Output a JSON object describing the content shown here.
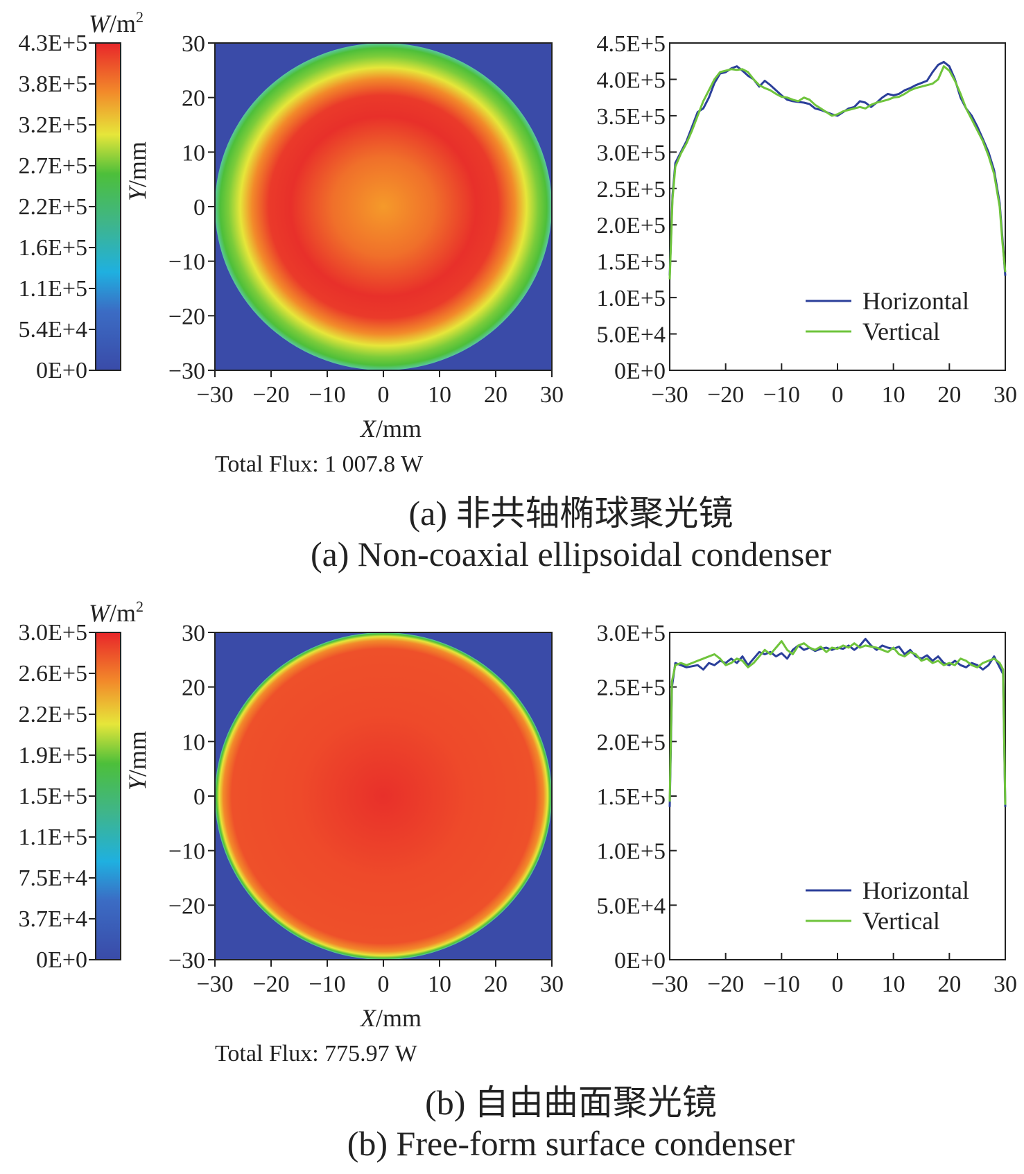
{
  "figure": {
    "panels": [
      {
        "id": "a",
        "colorbar": {
          "unit_var": "W",
          "unit_rest": "/m",
          "unit_sup": "2",
          "labels": [
            "4.3E+5",
            "3.8E+5",
            "3.2E+5",
            "2.7E+5",
            "2.2E+5",
            "1.6E+5",
            "1.1E+5",
            "5.4E+4",
            "0E+0"
          ]
        },
        "map": {
          "y_var": "Y",
          "y_unit": "/mm",
          "x_var": "X",
          "x_unit": "/mm",
          "ticks": [
            "30",
            "20",
            "10",
            "0",
            "−10",
            "−20",
            "−30"
          ],
          "xticks": [
            "−30",
            "−20",
            "−10",
            "0",
            "10",
            "20",
            "30"
          ],
          "total_flux": "Total Flux: 1 007.8 W"
        },
        "caption_cn": "(a) 非共轴椭球聚光镜",
        "caption_en": "(a) Non-coaxial ellipsoidal condenser"
      },
      {
        "id": "b",
        "colorbar": {
          "unit_var": "W",
          "unit_rest": "/m",
          "unit_sup": "2",
          "labels": [
            "3.0E+5",
            "2.6E+5",
            "2.2E+5",
            "1.9E+5",
            "1.5E+5",
            "1.1E+5",
            "7.5E+4",
            "3.7E+4",
            "0E+0"
          ]
        },
        "map": {
          "y_var": "Y",
          "y_unit": "/mm",
          "x_var": "X",
          "x_unit": "/mm",
          "ticks": [
            "30",
            "20",
            "10",
            "0",
            "−10",
            "−20",
            "−30"
          ],
          "xticks": [
            "−30",
            "−20",
            "−10",
            "0",
            "10",
            "20",
            "30"
          ],
          "total_flux": "Total Flux: 775.97 W"
        },
        "caption_cn": "(b) 自由曲面聚光镜",
        "caption_en": "(b) Free-form surface condenser"
      }
    ]
  },
  "chart_data": [
    {
      "type": "heatmap",
      "panel": "a",
      "xlim": [
        -30,
        30
      ],
      "ylim": [
        -30,
        30
      ],
      "zlim": [
        0,
        430000
      ],
      "colormap": [
        "#3a4ba8",
        "#1fb0e0",
        "#4dbf3a",
        "#e6e63a",
        "#f28a2a",
        "#e8262a"
      ],
      "disk_radius": 30,
      "radial_profile": [
        [
          0,
          0.8
        ],
        [
          10,
          0.85
        ],
        [
          15,
          0.93
        ],
        [
          19,
          0.97
        ],
        [
          23,
          0.85
        ],
        [
          26,
          0.68
        ],
        [
          28.5,
          0.52
        ],
        [
          30,
          0.3
        ]
      ],
      "total_flux": "Total Flux: 1 007.8 W"
    },
    {
      "type": "line",
      "panel": "a",
      "xlim": [
        -30,
        30
      ],
      "ylim": [
        0,
        450000
      ],
      "xticks": [
        "−30",
        "−20",
        "−10",
        "0",
        "10",
        "20",
        "30"
      ],
      "yticks": [
        "4.5E+5",
        "4.0E+5",
        "3.5E+5",
        "3.0E+5",
        "2.5E+5",
        "2.0E+5",
        "1.5E+5",
        "1.0E+5",
        "5.0E+4",
        "0E+0"
      ],
      "legend_position": "bottom-right",
      "series": [
        {
          "name": "Horizontal",
          "color": "#2b3f9a",
          "x": [
            -30,
            -29.5,
            -29,
            -28,
            -27,
            -26,
            -25,
            -24,
            -23,
            -22,
            -21,
            -20,
            -19,
            -18,
            -17,
            -16,
            -15,
            -14,
            -13,
            -12,
            -11,
            -10,
            -9,
            -8,
            -7,
            -6,
            -5,
            -4,
            -3,
            -2,
            -1,
            0,
            1,
            2,
            3,
            4,
            5,
            6,
            7,
            8,
            9,
            10,
            11,
            12,
            13,
            14,
            15,
            16,
            17,
            18,
            19,
            20,
            21,
            22,
            23,
            24,
            25,
            26,
            27,
            28,
            29,
            29.5,
            30
          ],
          "y": [
            130000,
            240000,
            285000,
            300000,
            315000,
            335000,
            355000,
            360000,
            375000,
            395000,
            408000,
            410000,
            415000,
            418000,
            412000,
            405000,
            400000,
            390000,
            398000,
            392000,
            385000,
            378000,
            372000,
            370000,
            369000,
            368000,
            366000,
            360000,
            358000,
            355000,
            352000,
            350000,
            355000,
            360000,
            362000,
            370000,
            368000,
            362000,
            368000,
            375000,
            380000,
            378000,
            380000,
            385000,
            388000,
            392000,
            395000,
            398000,
            410000,
            420000,
            424000,
            418000,
            400000,
            375000,
            360000,
            350000,
            335000,
            318000,
            300000,
            275000,
            230000,
            180000,
            130000
          ]
        },
        {
          "name": "Vertical",
          "color": "#6fc43c",
          "x": [
            -30,
            -29.5,
            -29,
            -28,
            -27,
            -26,
            -25,
            -24,
            -23,
            -22,
            -21,
            -20,
            -19,
            -18,
            -17,
            -16,
            -15,
            -14,
            -13,
            -12,
            -11,
            -10,
            -9,
            -8,
            -7,
            -6,
            -5,
            -4,
            -3,
            -2,
            -1,
            0,
            1,
            2,
            3,
            4,
            5,
            6,
            7,
            8,
            9,
            10,
            11,
            12,
            13,
            14,
            15,
            16,
            17,
            18,
            19,
            20,
            21,
            22,
            23,
            24,
            25,
            26,
            27,
            28,
            29,
            29.5,
            30
          ],
          "y": [
            125000,
            235000,
            280000,
            298000,
            312000,
            330000,
            350000,
            370000,
            385000,
            400000,
            410000,
            412000,
            414000,
            413000,
            414000,
            410000,
            400000,
            392000,
            388000,
            385000,
            380000,
            376000,
            375000,
            372000,
            370000,
            375000,
            372000,
            365000,
            360000,
            355000,
            350000,
            352000,
            356000,
            358000,
            360000,
            362000,
            360000,
            365000,
            368000,
            370000,
            372000,
            375000,
            376000,
            380000,
            385000,
            388000,
            390000,
            392000,
            394000,
            400000,
            418000,
            412000,
            398000,
            380000,
            360000,
            345000,
            330000,
            315000,
            295000,
            270000,
            225000,
            175000,
            135000
          ]
        }
      ]
    },
    {
      "type": "heatmap",
      "panel": "b",
      "xlim": [
        -30,
        30
      ],
      "ylim": [
        -30,
        30
      ],
      "zlim": [
        0,
        300000
      ],
      "colormap": [
        "#3a4ba8",
        "#1fb0e0",
        "#4dbf3a",
        "#e6e63a",
        "#f28a2a",
        "#e8262a"
      ],
      "disk_radius": 30,
      "radial_profile": [
        [
          0,
          0.94
        ],
        [
          20,
          0.93
        ],
        [
          27,
          0.92
        ],
        [
          28.6,
          0.85
        ],
        [
          29.3,
          0.65
        ],
        [
          29.8,
          0.45
        ],
        [
          30,
          0.3
        ]
      ],
      "total_flux": "Total Flux: 775.97 W"
    },
    {
      "type": "line",
      "panel": "b",
      "xlim": [
        -30,
        30
      ],
      "ylim": [
        0,
        300000
      ],
      "xticks": [
        "−30",
        "−20",
        "−10",
        "0",
        "10",
        "20",
        "30"
      ],
      "yticks": [
        "3.0E+5",
        "2.5E+5",
        "2.0E+5",
        "1.5E+5",
        "1.0E+5",
        "5.0E+4",
        "0E+0"
      ],
      "legend_position": "bottom-right",
      "series": [
        {
          "name": "Horizontal",
          "color": "#2b3f9a",
          "x": [
            -30,
            -29.6,
            -29,
            -28,
            -27,
            -26,
            -25,
            -24,
            -23,
            -22,
            -21,
            -20,
            -19,
            -18,
            -17,
            -16,
            -15,
            -14,
            -13,
            -12,
            -11,
            -10,
            -9,
            -8,
            -7,
            -6,
            -5,
            -4,
            -3,
            -2,
            -1,
            0,
            1,
            2,
            3,
            4,
            5,
            6,
            7,
            8,
            9,
            10,
            11,
            12,
            13,
            14,
            15,
            16,
            17,
            18,
            19,
            20,
            21,
            22,
            23,
            24,
            25,
            26,
            27,
            28,
            29,
            29.6,
            30
          ],
          "y": [
            140000,
            250000,
            272000,
            270000,
            268000,
            269000,
            270000,
            266000,
            272000,
            270000,
            274000,
            272000,
            276000,
            272000,
            278000,
            270000,
            276000,
            282000,
            280000,
            282000,
            278000,
            281000,
            276000,
            284000,
            288000,
            284000,
            286000,
            283000,
            285000,
            286000,
            284000,
            286000,
            285000,
            288000,
            284000,
            288000,
            294000,
            288000,
            284000,
            288000,
            286000,
            285000,
            287000,
            280000,
            284000,
            278000,
            276000,
            279000,
            274000,
            278000,
            272000,
            270000,
            274000,
            270000,
            268000,
            272000,
            270000,
            266000,
            270000,
            278000,
            268000,
            262000,
            140000
          ]
        },
        {
          "name": "Vertical",
          "color": "#6fc43c",
          "x": [
            -30,
            -29.6,
            -29,
            -28,
            -27,
            -26,
            -25,
            -24,
            -23,
            -22,
            -21,
            -20,
            -19,
            -18,
            -17,
            -16,
            -15,
            -14,
            -13,
            -12,
            -11,
            -10,
            -9,
            -8,
            -7,
            -6,
            -5,
            -4,
            -3,
            -2,
            -1,
            0,
            1,
            2,
            3,
            4,
            5,
            6,
            7,
            8,
            9,
            10,
            11,
            12,
            13,
            14,
            15,
            16,
            17,
            18,
            19,
            20,
            21,
            22,
            23,
            24,
            25,
            26,
            27,
            28,
            29,
            29.6,
            30
          ],
          "y": [
            145000,
            255000,
            270000,
            272000,
            270000,
            272000,
            274000,
            276000,
            278000,
            280000,
            276000,
            270000,
            272000,
            276000,
            274000,
            268000,
            272000,
            278000,
            284000,
            280000,
            286000,
            292000,
            284000,
            280000,
            288000,
            290000,
            286000,
            284000,
            287000,
            282000,
            286000,
            285000,
            288000,
            286000,
            290000,
            286000,
            288000,
            287000,
            286000,
            284000,
            282000,
            286000,
            280000,
            278000,
            282000,
            280000,
            274000,
            276000,
            272000,
            274000,
            270000,
            272000,
            270000,
            276000,
            274000,
            270000,
            268000,
            272000,
            274000,
            276000,
            272000,
            266000,
            142000
          ]
        }
      ]
    }
  ]
}
